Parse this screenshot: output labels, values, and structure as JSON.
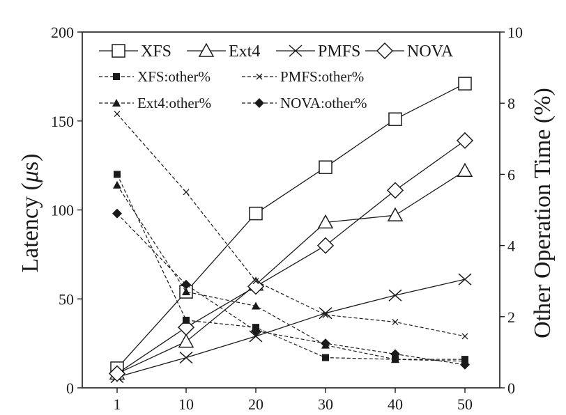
{
  "chart_data": {
    "type": "line",
    "x": [
      1,
      10,
      20,
      30,
      40,
      50
    ],
    "xticks": [
      "1",
      "10",
      "20",
      "30",
      "40",
      "50"
    ],
    "ylabel_left": "Latency (μs)",
    "ylabel_left_parts": [
      "Latency (",
      "μ",
      "s)"
    ],
    "ylabel_right": "Other Operation Time (%)",
    "ylim_left": [
      0,
      200
    ],
    "yticks_left": [
      "0",
      "50",
      "100",
      "150",
      "200"
    ],
    "ylim_right": [
      0,
      10
    ],
    "yticks_right": [
      "0",
      "2",
      "4",
      "6",
      "8",
      "10"
    ],
    "grid": false,
    "legend_position": "top",
    "series": [
      {
        "name": "XFS",
        "axis": "left",
        "marker": "square-open",
        "dash": "solid",
        "values": [
          11,
          54,
          98,
          124,
          151,
          171
        ]
      },
      {
        "name": "Ext4",
        "axis": "left",
        "marker": "triangle-open",
        "dash": "solid",
        "values": [
          8,
          26,
          58,
          93,
          97,
          122
        ]
      },
      {
        "name": "PMFS",
        "axis": "left",
        "marker": "x",
        "dash": "solid",
        "values": [
          6,
          17,
          29,
          42,
          52,
          61
        ]
      },
      {
        "name": "NOVA",
        "axis": "left",
        "marker": "diamond-open",
        "dash": "solid",
        "values": [
          8,
          34,
          57,
          80,
          111,
          139
        ]
      },
      {
        "name": "XFS:other%",
        "axis": "right",
        "marker": "square-filled",
        "dash": "dashed",
        "values": [
          6.0,
          1.9,
          1.7,
          0.85,
          0.8,
          0.8
        ]
      },
      {
        "name": "PMFS:other%",
        "axis": "right",
        "marker": "x-small",
        "dash": "dashed",
        "values": [
          7.7,
          5.5,
          3.0,
          2.05,
          1.85,
          1.45
        ]
      },
      {
        "name": "Ext4:other%",
        "axis": "right",
        "marker": "triangle-filled",
        "dash": "dashed",
        "values": [
          5.7,
          2.7,
          2.3,
          1.2,
          0.8,
          0.75
        ]
      },
      {
        "name": "NOVA:other%",
        "axis": "right",
        "marker": "diamond-filled",
        "dash": "dashed",
        "values": [
          4.9,
          2.9,
          1.6,
          1.25,
          0.95,
          0.65
        ]
      }
    ],
    "legend_rows": [
      [
        "XFS",
        "Ext4",
        "PMFS",
        "NOVA"
      ],
      [
        "XFS:other%",
        "PMFS:other%"
      ],
      [
        "Ext4:other%",
        "NOVA:other%"
      ]
    ]
  }
}
